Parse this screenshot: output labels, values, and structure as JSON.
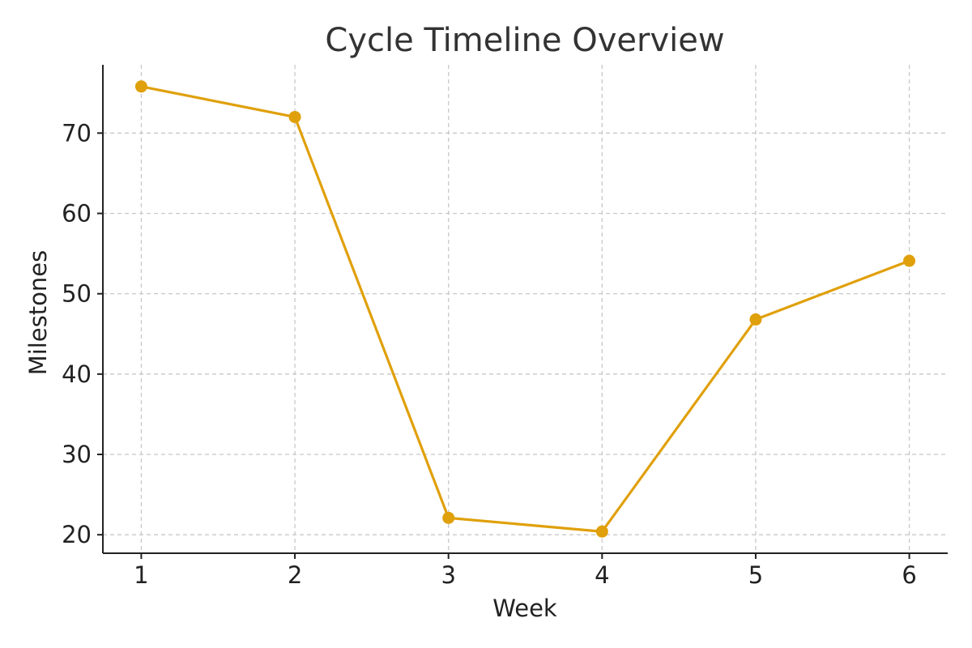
{
  "chart_data": {
    "type": "line",
    "title": "Cycle Timeline Overview",
    "xlabel": "Week",
    "ylabel": "Milestones",
    "x": [
      1,
      2,
      3,
      4,
      5,
      6
    ],
    "series": [
      {
        "values": [
          75.8,
          72.0,
          22.1,
          20.4,
          46.8,
          54.1
        ],
        "color": "#E0A00B"
      }
    ],
    "xlim": [
      0.75,
      6.25
    ],
    "ylim": [
      17.7,
      78.5
    ],
    "xticks": [
      1,
      2,
      3,
      4,
      5,
      6
    ],
    "yticks": [
      20,
      30,
      40,
      50,
      60,
      70
    ],
    "grid": true,
    "marker": "circle"
  }
}
